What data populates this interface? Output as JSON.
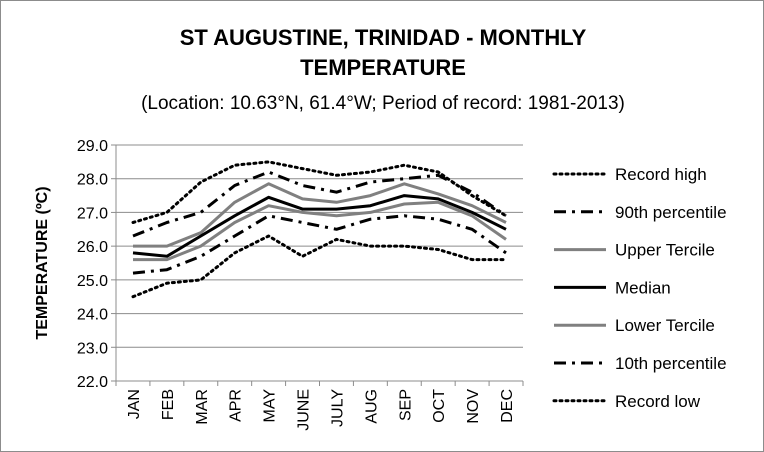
{
  "chart_data": {
    "type": "line",
    "title": "ST AUGUSTINE, TRINIDAD - MONTHLY TEMPERATURE",
    "title_lines": [
      "ST AUGUSTINE, TRINIDAD - MONTHLY",
      "TEMPERATURE"
    ],
    "subtitle": "(Location: 10.63°N, 61.4°W; Period of record: 1981-2013)",
    "xlabel": "",
    "ylabel": "TEMPERATURE (ºC)",
    "ylim": [
      22.0,
      29.0
    ],
    "yticks": [
      "22.0",
      "23.0",
      "24.0",
      "25.0",
      "26.0",
      "27.0",
      "28.0",
      "29.0"
    ],
    "categories": [
      "JAN",
      "FEB",
      "MAR",
      "APR",
      "MAY",
      "JUNE",
      "JULY",
      "AUG",
      "SEP",
      "OCT",
      "NOV",
      "DEC"
    ],
    "grid": true,
    "legend_position": "right",
    "series": [
      {
        "name": "Record high",
        "color": "#000000",
        "style": "dotted",
        "width": 3,
        "values": [
          26.7,
          27.0,
          27.9,
          28.4,
          28.5,
          28.3,
          28.1,
          28.2,
          28.4,
          28.2,
          27.5,
          26.9
        ]
      },
      {
        "name": "90th percentile",
        "color": "#000000",
        "style": "dashdot",
        "width": 3,
        "values": [
          26.3,
          26.7,
          27.0,
          27.8,
          28.2,
          27.8,
          27.6,
          27.9,
          28.0,
          28.1,
          27.6,
          26.9
        ]
      },
      {
        "name": "Upper Tercile",
        "color": "#808080",
        "style": "solid",
        "width": 3,
        "values": [
          26.0,
          26.0,
          26.4,
          27.3,
          27.85,
          27.4,
          27.3,
          27.5,
          27.85,
          27.55,
          27.2,
          26.7
        ]
      },
      {
        "name": "Median",
        "color": "#000000",
        "style": "solid",
        "width": 3,
        "values": [
          25.8,
          25.7,
          26.3,
          26.9,
          27.45,
          27.1,
          27.1,
          27.2,
          27.5,
          27.4,
          27.0,
          26.5
        ]
      },
      {
        "name": "Lower Tercile",
        "color": "#808080",
        "style": "solid",
        "width": 3,
        "values": [
          25.6,
          25.6,
          26.0,
          26.7,
          27.2,
          27.0,
          26.9,
          27.0,
          27.25,
          27.3,
          26.9,
          26.2
        ]
      },
      {
        "name": "10th percentile",
        "color": "#000000",
        "style": "dashdot",
        "width": 3,
        "values": [
          25.2,
          25.3,
          25.7,
          26.3,
          26.9,
          26.7,
          26.5,
          26.8,
          26.9,
          26.8,
          26.5,
          25.8
        ]
      },
      {
        "name": "Record low",
        "color": "#000000",
        "style": "dotted",
        "width": 3,
        "values": [
          24.5,
          24.9,
          25.0,
          25.8,
          26.3,
          25.7,
          26.2,
          26.0,
          26.0,
          25.9,
          25.6,
          25.6
        ]
      }
    ]
  }
}
